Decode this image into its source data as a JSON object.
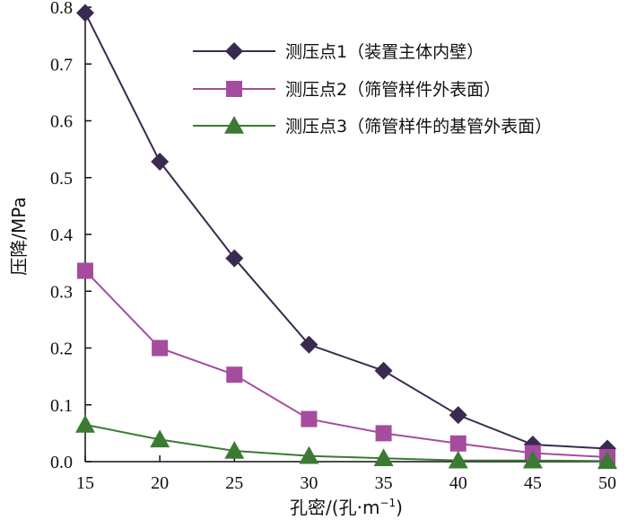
{
  "chart_data": {
    "type": "line",
    "x": [
      15,
      20,
      25,
      30,
      35,
      40,
      45,
      50
    ],
    "xlim": [
      15,
      50
    ],
    "ylim": [
      0,
      0.8
    ],
    "xticks": [
      "15",
      "20",
      "25",
      "30",
      "35",
      "40",
      "45",
      "50"
    ],
    "yticks": [
      "0.0",
      "0.1",
      "0.2",
      "0.3",
      "0.4",
      "0.5",
      "0.6",
      "0.7",
      "0.8"
    ],
    "xlabel": "孔密/(孔·m",
    "xlabel_sup": "−1",
    "xlabel_end": ")",
    "ylabel": "压降/MPa",
    "grid": false,
    "legend_position": "top-right",
    "series": [
      {
        "name": "测压点1（装置主体内壁）",
        "color": "#3b2a4f",
        "marker": "diamond",
        "values": [
          0.79,
          0.528,
          0.358,
          0.206,
          0.16,
          0.082,
          0.03,
          0.023
        ]
      },
      {
        "name": "测压点2（筛管样件外表面）",
        "color": "#a54c9e",
        "marker": "square",
        "values": [
          0.336,
          0.2,
          0.153,
          0.075,
          0.05,
          0.032,
          0.015,
          0.008
        ]
      },
      {
        "name": "测压点3（筛管样件的基管外表面）",
        "color": "#3c7a34",
        "marker": "triangle",
        "values": [
          0.065,
          0.039,
          0.019,
          0.01,
          0.006,
          0.002,
          0.002,
          0.001
        ]
      }
    ]
  }
}
